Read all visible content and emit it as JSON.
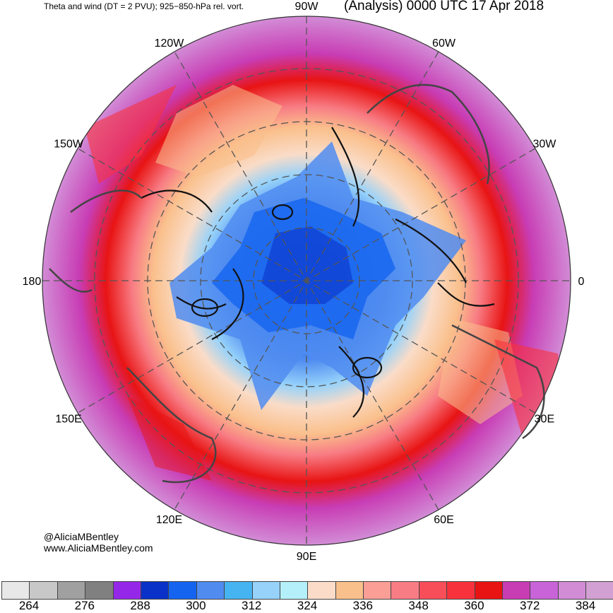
{
  "header": {
    "left_title": "Theta and wind (DT = 2 PVU); 925−850-hPa rel. vort.",
    "right_title": "(Analysis) 0000 UTC 17 Apr 2018"
  },
  "credits": {
    "line1": "@AliciaMBentley",
    "line2": "www.AliciaMBentley.com"
  },
  "longitude_labels": [
    {
      "text": "90W",
      "angle_deg": 0
    },
    {
      "text": "60W",
      "angle_deg": 30
    },
    {
      "text": "30W",
      "angle_deg": 60
    },
    {
      "text": "0",
      "angle_deg": 90
    },
    {
      "text": "30E",
      "angle_deg": 120
    },
    {
      "text": "60E",
      "angle_deg": 150
    },
    {
      "text": "90E",
      "angle_deg": 180
    },
    {
      "text": "120E",
      "angle_deg": 210
    },
    {
      "text": "150E",
      "angle_deg": 240
    },
    {
      "text": "180",
      "angle_deg": 270
    },
    {
      "text": "150W",
      "angle_deg": 300
    },
    {
      "text": "120W",
      "angle_deg": 330
    }
  ],
  "colorbar": {
    "colors": [
      "#e8e8e8",
      "#c8c8c8",
      "#a0a0a0",
      "#808080",
      "#9528e8",
      "#0a32c8",
      "#1464f0",
      "#508cf0",
      "#46b4f0",
      "#96d2fa",
      "#b4f0fa",
      "#fadcc8",
      "#fac08c",
      "#fa9e96",
      "#f87c84",
      "#f84e5a",
      "#f8323c",
      "#e81414",
      "#c83cb4",
      "#c864d8",
      "#d28cd6",
      "#d2a0d2"
    ],
    "tick_labels": [
      "264",
      "276",
      "288",
      "300",
      "312",
      "324",
      "336",
      "348",
      "360",
      "372",
      "384"
    ]
  },
  "colors": {
    "background": "#ffffff",
    "grid": "#555555",
    "coast": "#444444"
  }
}
